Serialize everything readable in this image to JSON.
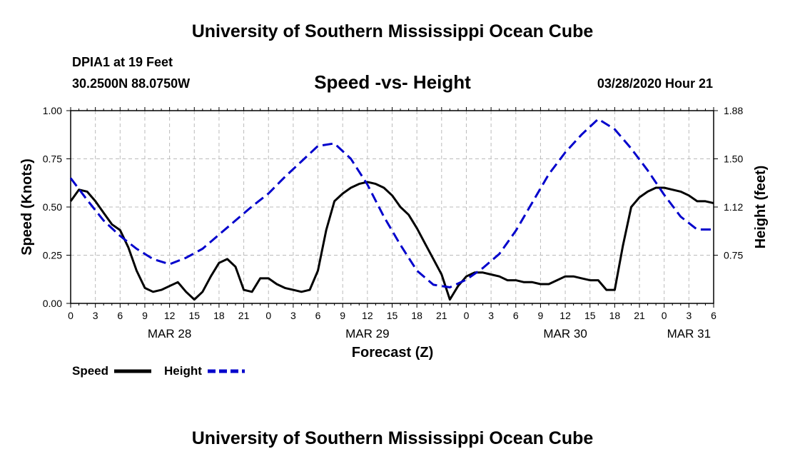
{
  "header": {
    "title": "University of Southern Mississippi Ocean Cube",
    "station": "DPIA1 at 19 Feet",
    "coordinates": "30.2500N 88.0750W",
    "datetime": "03/28/2020 Hour 21"
  },
  "footer": {
    "title": "University of Southern Mississippi Ocean Cube"
  },
  "legend": {
    "speed": "Speed",
    "height": "Height"
  },
  "chart_data": {
    "type": "line",
    "title": "Speed -vs- Height",
    "xlabel": "Forecast (Z)",
    "ylabel_left": "Speed (Knots)",
    "ylabel_right": "Height (feet)",
    "x_range_hours": [
      0,
      78
    ],
    "ylim_left": [
      0,
      1.0
    ],
    "ylim_right": [
      0.375,
      1.875
    ],
    "left_ticks": [
      "0.00",
      "0.25",
      "0.50",
      "0.75",
      "1.00"
    ],
    "right_ticks": [
      "0.75",
      "1.12",
      "1.50",
      "1.88"
    ],
    "right_tick_values": [
      0.75,
      1.125,
      1.5,
      1.875
    ],
    "x_tick_labels": [
      "0",
      "3",
      "6",
      "9",
      "12",
      "15",
      "18",
      "21",
      "0",
      "3",
      "6",
      "9",
      "12",
      "15",
      "18",
      "21",
      "0",
      "3",
      "6",
      "9",
      "12",
      "15",
      "18",
      "21",
      "0",
      "3",
      "6"
    ],
    "date_labels": [
      {
        "label": "MAR 28",
        "hour": 12
      },
      {
        "label": "MAR 29",
        "hour": 36
      },
      {
        "label": "MAR 30",
        "hour": 60
      },
      {
        "label": "MAR 31",
        "hour": 75
      }
    ],
    "colors": {
      "speed": "#000000",
      "height": "#0000cc",
      "grid": "#bbbbbb"
    },
    "series": [
      {
        "name": "Speed",
        "axis": "left",
        "x": [
          0,
          1,
          2,
          3,
          4,
          5,
          6,
          7,
          8,
          9,
          10,
          11,
          12,
          13,
          14,
          15,
          16,
          17,
          18,
          19,
          20,
          21,
          22,
          23,
          24,
          25,
          26,
          27,
          28,
          29,
          30,
          31,
          32,
          33,
          34,
          35,
          36,
          37,
          38,
          39,
          40,
          41,
          42,
          43,
          44,
          45,
          46,
          47,
          48,
          49,
          50,
          51,
          52,
          53,
          54,
          55,
          56,
          57,
          58,
          59,
          60,
          61,
          62,
          63,
          64,
          65,
          66,
          67,
          68,
          69,
          70,
          71,
          72,
          73,
          74,
          75,
          76,
          77,
          78
        ],
        "values": [
          0.53,
          0.59,
          0.58,
          0.53,
          0.47,
          0.41,
          0.38,
          0.29,
          0.17,
          0.08,
          0.06,
          0.07,
          0.09,
          0.11,
          0.06,
          0.02,
          0.06,
          0.14,
          0.21,
          0.23,
          0.19,
          0.07,
          0.06,
          0.13,
          0.13,
          0.1,
          0.08,
          0.07,
          0.06,
          0.07,
          0.17,
          0.38,
          0.53,
          0.57,
          0.6,
          0.62,
          0.63,
          0.62,
          0.6,
          0.56,
          0.5,
          0.46,
          0.39,
          0.31,
          0.23,
          0.15,
          0.02,
          0.09,
          0.14,
          0.16,
          0.16,
          0.15,
          0.14,
          0.12,
          0.12,
          0.11,
          0.11,
          0.1,
          0.1,
          0.12,
          0.14,
          0.14,
          0.13,
          0.12,
          0.12,
          0.07,
          0.07,
          0.3,
          0.5,
          0.55,
          0.58,
          0.6,
          0.6,
          0.59,
          0.58,
          0.56,
          0.53,
          0.53,
          0.52
        ]
      },
      {
        "name": "Height",
        "axis": "right",
        "x": [
          0,
          2,
          4,
          6,
          8,
          10,
          12,
          14,
          16,
          18,
          20,
          22,
          24,
          26,
          28,
          30,
          32,
          34,
          36,
          38,
          40,
          42,
          44,
          46,
          48,
          50,
          52,
          54,
          56,
          58,
          60,
          62,
          64,
          66,
          68,
          70,
          72,
          74,
          76,
          78
        ],
        "values": [
          1.35,
          1.18,
          1.02,
          0.9,
          0.8,
          0.72,
          0.68,
          0.73,
          0.8,
          0.91,
          1.02,
          1.13,
          1.23,
          1.36,
          1.48,
          1.6,
          1.62,
          1.5,
          1.3,
          1.05,
          0.83,
          0.63,
          0.52,
          0.5,
          0.56,
          0.65,
          0.76,
          0.94,
          1.16,
          1.38,
          1.55,
          1.69,
          1.81,
          1.73,
          1.58,
          1.41,
          1.22,
          1.05,
          0.95,
          0.95
        ]
      }
    ]
  }
}
